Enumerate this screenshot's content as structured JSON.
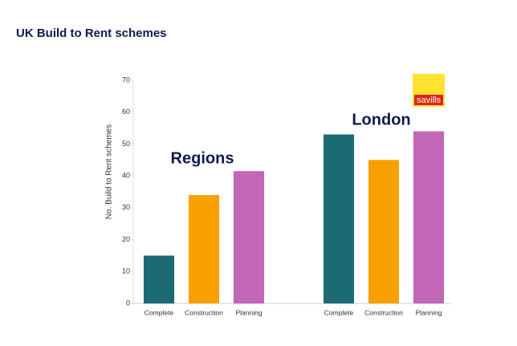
{
  "chart_data": {
    "type": "bar",
    "title": "UK Build to Rent schemes",
    "y_label": "No. Build to Rent schemes",
    "categories": [
      "Complete",
      "Construction",
      "Planning",
      null,
      "Complete",
      "Construction",
      "Planning"
    ],
    "values": [
      15,
      34,
      41.5,
      null,
      53,
      45,
      54
    ],
    "colors": [
      "#1d6b72",
      "#f8a000",
      "#c266b8",
      null,
      "#1d6b72",
      "#f8a000",
      "#c266b8"
    ],
    "ylim": [
      0,
      70
    ],
    "yticks": [
      0,
      10,
      20,
      30,
      40,
      50,
      60,
      70
    ],
    "grid": false,
    "annotations": [
      "Regions",
      "London"
    ],
    "logo": "savills"
  }
}
